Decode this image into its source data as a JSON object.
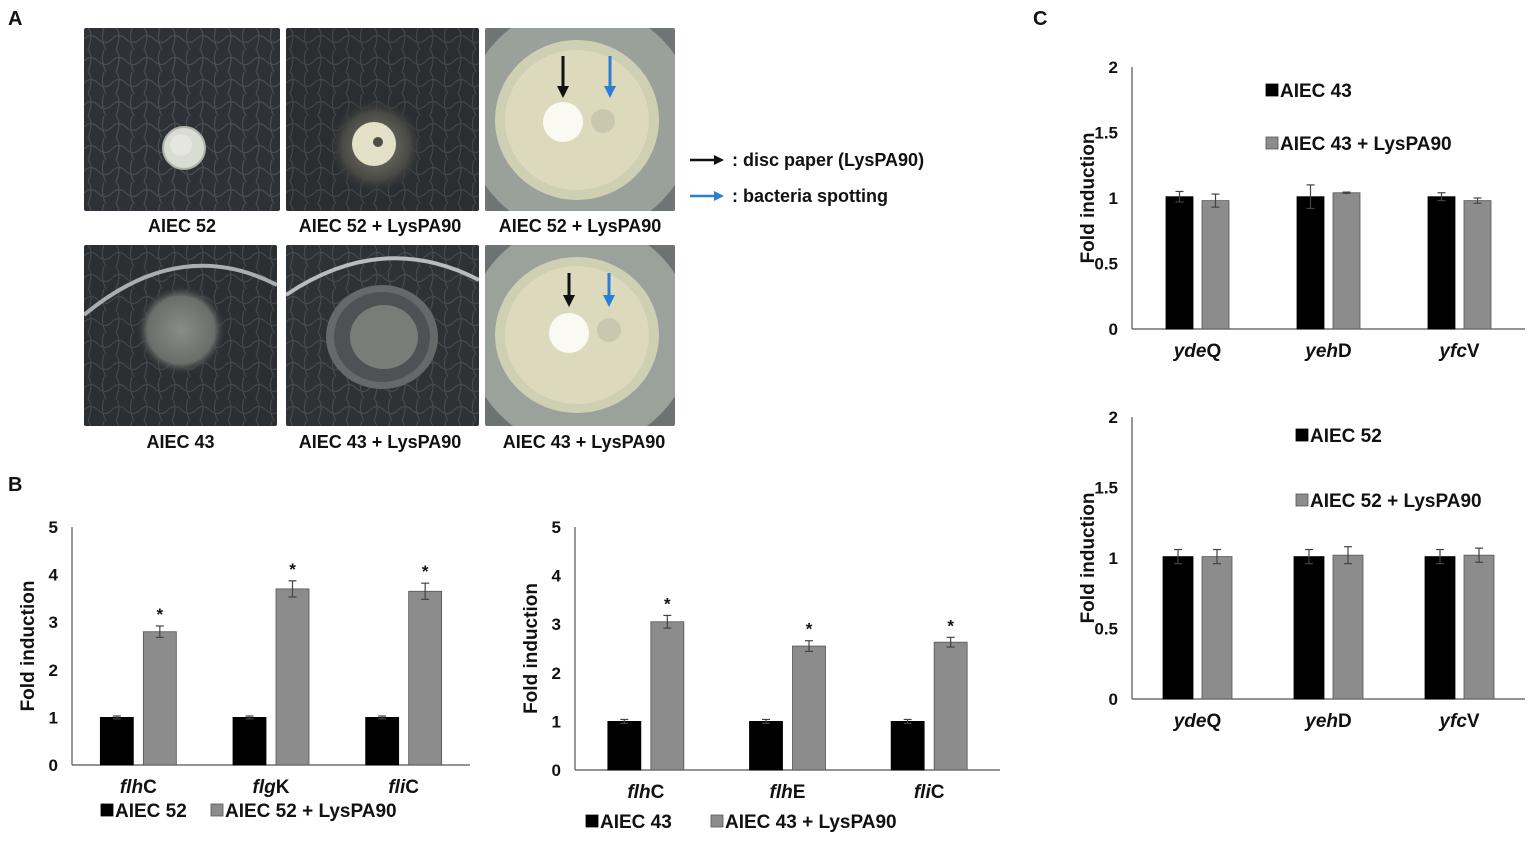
{
  "panels": {
    "a_label": "A",
    "b_label": "B",
    "c_label": "C"
  },
  "photos": {
    "row1": [
      "AIEC  52",
      "AIEC  52 + LysPA90",
      "AIEC  52 + LysPA90"
    ],
    "row2": [
      "AIEC  43",
      "AIEC  43 + LysPA90",
      "AIEC  43 + LysPA90"
    ]
  },
  "arrow_legend": {
    "black_text": ": disc paper (LysPA90)",
    "blue_text": ": bacteria spotting",
    "black_color": "#111111",
    "blue_color": "#2a7fd4"
  },
  "colors": {
    "series_dark": "#000000",
    "series_gray": "#8c8c8c",
    "axis": "#555555",
    "error_bar": "#444444"
  },
  "chart_data": [
    {
      "id": "b-left",
      "type": "bar",
      "ylabel": "Fold induction",
      "ylim": [
        0,
        5
      ],
      "yticks": [
        "0",
        "1",
        "2",
        "3",
        "4",
        "5"
      ],
      "categories": [
        [
          "fl",
          "h",
          "C"
        ],
        [
          "fl",
          "g",
          "K"
        ],
        [
          "fl",
          "i",
          "C"
        ]
      ],
      "series": [
        {
          "name": "AIEC 52",
          "values": [
            1.0,
            1.0,
            1.0
          ],
          "errors": [
            0.03,
            0.03,
            0.03
          ]
        },
        {
          "name": "AIEC 52 + LysPA90",
          "values": [
            2.8,
            3.7,
            3.65
          ],
          "errors": [
            0.12,
            0.17,
            0.17
          ]
        }
      ],
      "significance": [
        "",
        "*",
        "",
        "*",
        "",
        "*"
      ],
      "legend_position": "bottom",
      "grid": false
    },
    {
      "id": "b-right",
      "type": "bar",
      "ylabel": "Fold induction",
      "ylim": [
        0,
        5
      ],
      "yticks": [
        "0",
        "1",
        "2",
        "3",
        "4",
        "5"
      ],
      "categories": [
        [
          "fl",
          "h",
          "C"
        ],
        [
          "fl",
          "h",
          "E"
        ],
        [
          "fl",
          "i",
          "C"
        ]
      ],
      "series": [
        {
          "name": "AIEC 43",
          "values": [
            1.0,
            1.0,
            1.0
          ],
          "errors": [
            0.04,
            0.04,
            0.04
          ]
        },
        {
          "name": "AIEC 43 + LysPA90",
          "values": [
            3.05,
            2.55,
            2.63
          ],
          "errors": [
            0.13,
            0.11,
            0.1
          ]
        }
      ],
      "significance": [
        "",
        "*",
        "",
        "*",
        "",
        "*"
      ],
      "legend_position": "bottom",
      "grid": false
    },
    {
      "id": "c-top",
      "type": "bar",
      "ylabel": "Fold induction",
      "ylim": [
        0,
        2
      ],
      "yticks": [
        "0",
        "0.5",
        "1",
        "1.5",
        "2"
      ],
      "categories": [
        [
          "yd",
          "e",
          "Q"
        ],
        [
          "ye",
          "h",
          "D"
        ],
        [
          "yf",
          "c",
          "V"
        ]
      ],
      "series": [
        {
          "name": "AIEC 43",
          "values": [
            1.01,
            1.01,
            1.01
          ],
          "errors": [
            0.04,
            0.09,
            0.03
          ]
        },
        {
          "name": "AIEC 43 + LysPA90",
          "values": [
            0.98,
            1.04,
            0.98
          ],
          "errors": [
            0.05,
            0.005,
            0.02
          ]
        }
      ],
      "significance": [
        "",
        "",
        "",
        "",
        "",
        ""
      ],
      "legend_position": "top-right",
      "grid": false
    },
    {
      "id": "c-bottom",
      "type": "bar",
      "ylabel": "Fold induction",
      "ylim": [
        0,
        2
      ],
      "yticks": [
        "0",
        "0.5",
        "1",
        "1.5",
        "2"
      ],
      "categories": [
        [
          "yd",
          "e",
          "Q"
        ],
        [
          "ye",
          "h",
          "D"
        ],
        [
          "yf",
          "c",
          "V"
        ]
      ],
      "series": [
        {
          "name": "AIEC 52",
          "values": [
            1.01,
            1.01,
            1.01
          ],
          "errors": [
            0.05,
            0.05,
            0.05
          ]
        },
        {
          "name": "AIEC 52 + LysPA90",
          "values": [
            1.01,
            1.02,
            1.02
          ],
          "errors": [
            0.05,
            0.06,
            0.05
          ]
        }
      ],
      "significance": [
        "",
        "",
        "",
        "",
        "",
        ""
      ],
      "legend_position": "top-right",
      "grid": false
    }
  ]
}
